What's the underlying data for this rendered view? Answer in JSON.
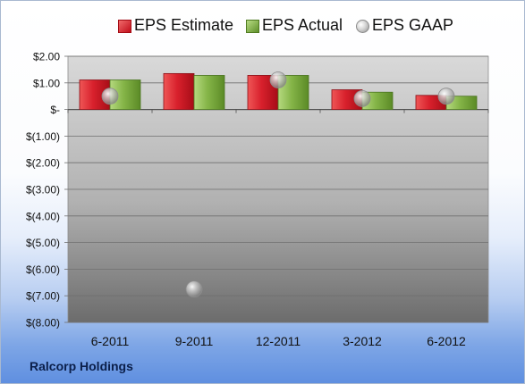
{
  "company": "Ralcorp Holdings",
  "chart_data": {
    "type": "bar",
    "title": "",
    "xlabel": "",
    "ylabel": "",
    "categories": [
      "6-2011",
      "9-2011",
      "12-2011",
      "3-2012",
      "6-2012"
    ],
    "series": [
      {
        "name": "EPS Estimate",
        "kind": "bar",
        "color": "#d21f2b",
        "values": [
          1.11,
          1.35,
          1.28,
          0.74,
          0.53
        ]
      },
      {
        "name": "EPS Actual",
        "kind": "bar",
        "color": "#76a83a",
        "values": [
          1.11,
          1.28,
          1.28,
          0.65,
          0.5
        ]
      },
      {
        "name": "EPS GAAP",
        "kind": "marker",
        "color": "#b8b8b8",
        "values": [
          0.5,
          -6.75,
          1.11,
          0.41,
          0.5
        ]
      }
    ],
    "ylim": [
      -8,
      2
    ],
    "yticks": [
      2,
      1,
      0,
      -1,
      -2,
      -3,
      -4,
      -5,
      -6,
      -7,
      -8
    ],
    "ytick_labels": [
      "$2.00",
      "$1.00",
      "$-",
      "$(1.00)",
      "$(2.00)",
      "$(3.00)",
      "$(4.00)",
      "$(5.00)",
      "$(6.00)",
      "$(7.00)",
      "$(8.00)"
    ],
    "grid": true,
    "legend": "top"
  }
}
